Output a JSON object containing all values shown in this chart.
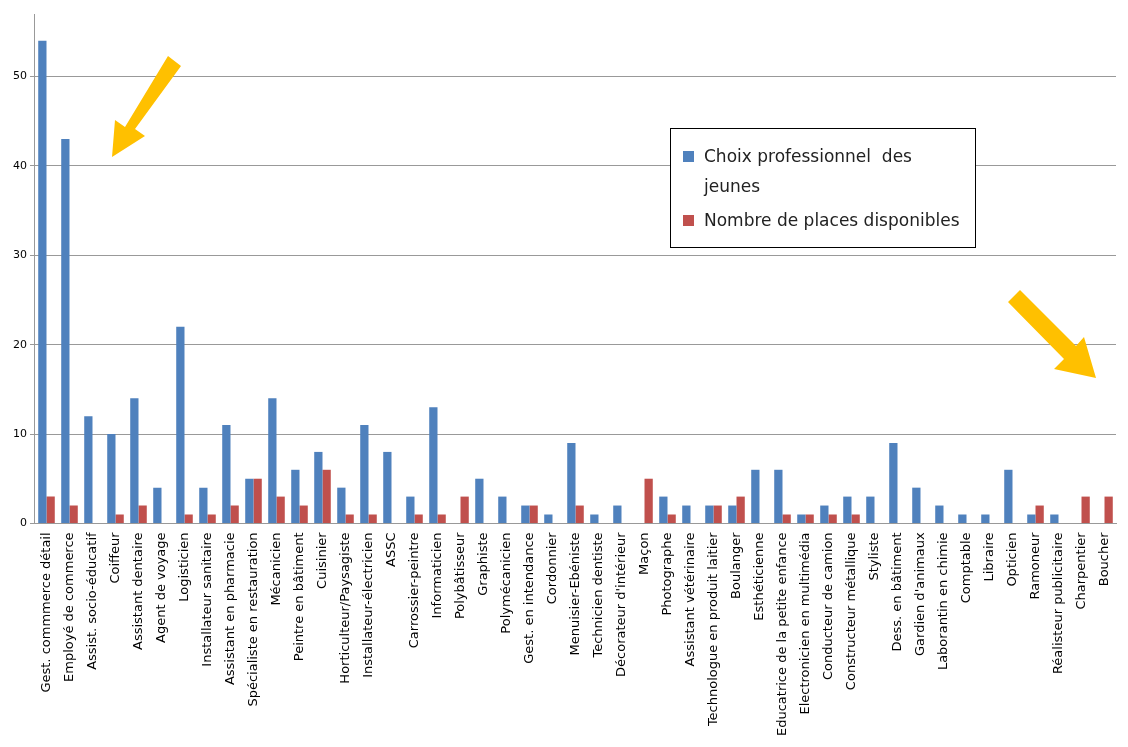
{
  "chart_data": {
    "type": "bar",
    "categories": [
      "Gest. commmerce détail",
      "Employé de commerce",
      "Assist. socio-éducatif",
      "Coiffeur",
      "Assistant dentaire",
      "Agent de voyage",
      "Logisticien",
      "Installateur sanitaire",
      "Assistant en pharmacie",
      "Spécialiste en restauration",
      "Mécanicien",
      "Peintre en bâtiment",
      "Cuisinier",
      "Horticulteur/Paysagiste",
      "Installateur-électricien",
      "ASSC",
      "Carrossier-peintre",
      "Informaticien",
      "Polybâtisseur",
      "Graphiste",
      "Polymécanicien",
      "Gest. en intendance",
      "Cordonnier",
      "Menuisier-Ebéniste",
      "Technicien dentiste",
      "Décorateur d'intérieur",
      "Maçon",
      "Photographe",
      "Assistant vétérinaire",
      "Technologue en produit laitier",
      "Boulanger",
      "Esthéticienne",
      "Educatrice de la petite enfance",
      "Electronicien en multimédia",
      "Conducteur de camion",
      "Constructeur métallique",
      "Styliste",
      "Dess. en bâtiment",
      "Gardien d'animaux",
      "Laborantin en chimie",
      "Comptable",
      "Libraire",
      "Opticien",
      "Ramoneur",
      "Réalisteur publicitaire",
      "Charpentier",
      "Boucher"
    ],
    "series": [
      {
        "name": "Choix professionnel  des jeunes",
        "color": "#4f81bd",
        "values": [
          54,
          43,
          12,
          10,
          14,
          4,
          22,
          4,
          11,
          5,
          14,
          6,
          8,
          4,
          11,
          8,
          3,
          13,
          0,
          5,
          3,
          2,
          1,
          9,
          1,
          2,
          0,
          3,
          2,
          2,
          2,
          6,
          6,
          1,
          2,
          3,
          3,
          9,
          4,
          2,
          1,
          1,
          6,
          1,
          1,
          0,
          0
        ]
      },
      {
        "name": "Nombre de places disponibles",
        "color": "#c0504d",
        "values": [
          3,
          2,
          0,
          1,
          2,
          0,
          1,
          1,
          2,
          5,
          3,
          2,
          6,
          1,
          1,
          0,
          1,
          1,
          3,
          0,
          0,
          2,
          0,
          2,
          0,
          0,
          5,
          1,
          0,
          2,
          3,
          0,
          1,
          1,
          1,
          1,
          0,
          0,
          0,
          0,
          0,
          0,
          0,
          2,
          0,
          3,
          3
        ]
      }
    ],
    "ylim": [
      0,
      57
    ],
    "yticks": [
      0,
      10,
      20,
      30,
      40,
      50
    ],
    "grid": "y",
    "legend": "top right"
  }
}
